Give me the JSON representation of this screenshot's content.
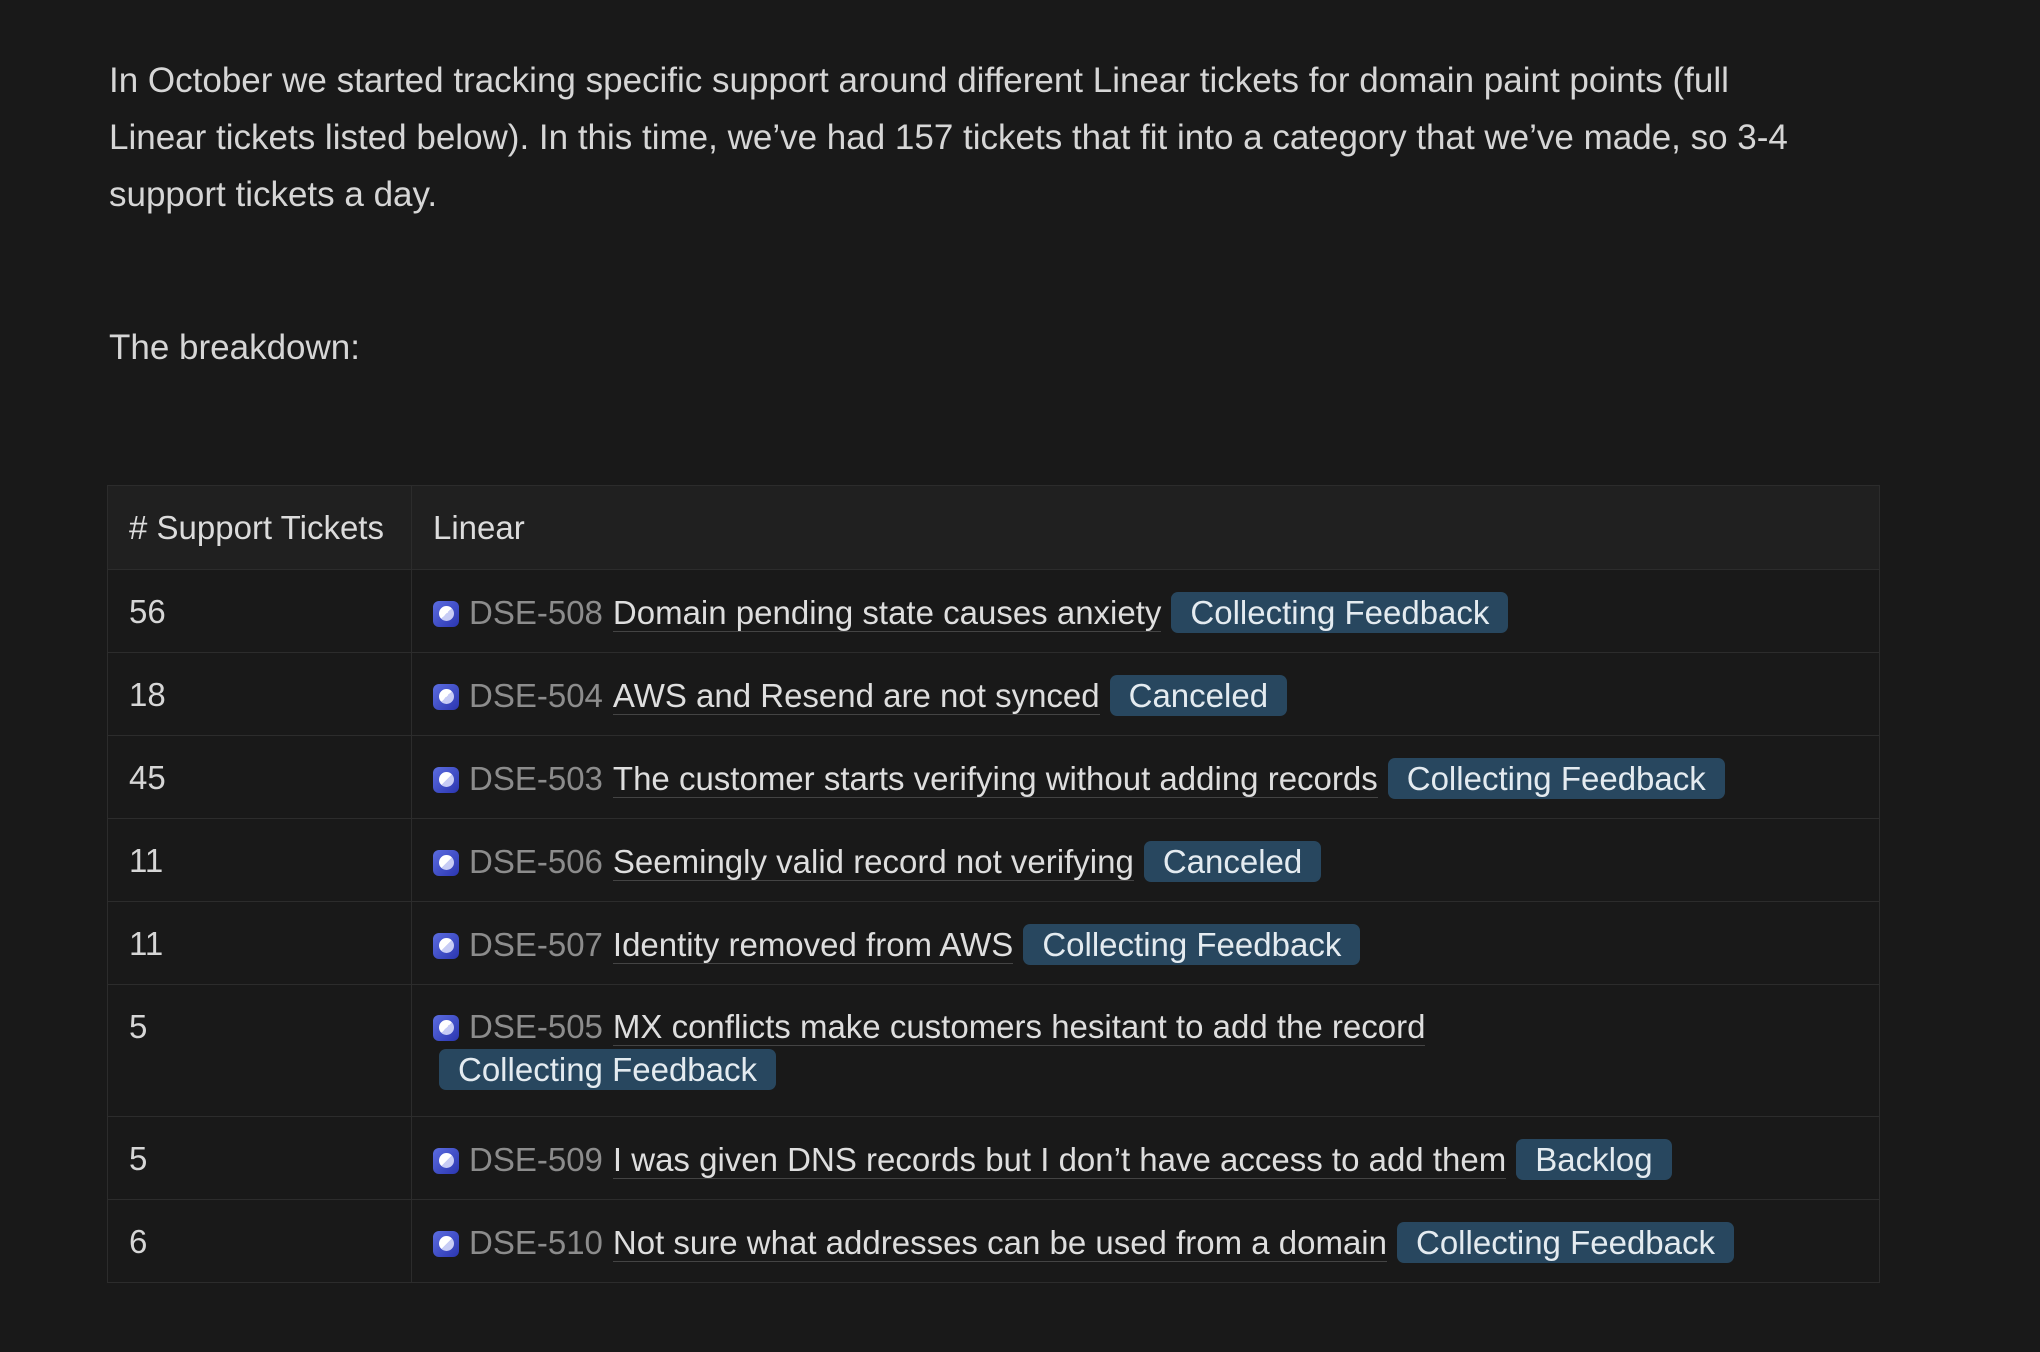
{
  "intro": "In October we started tracking specific support around different Linear tickets for domain paint points (full Linear tickets listed below). In this time, we’ve had 157 tickets that fit into a category that we’ve made, so 3-4 support tickets a day.",
  "breakdown_label": "The breakdown:",
  "table": {
    "headers": [
      "# Support Tickets",
      "Linear"
    ],
    "rows": [
      {
        "count": "56",
        "icon": "linear-issue-icon",
        "id": "DSE-508",
        "title": "Domain pending state causes anxiety",
        "status": "Collecting Feedback"
      },
      {
        "count": "18",
        "icon": "linear-issue-icon",
        "id": "DSE-504",
        "title": "AWS and Resend are not synced",
        "status": "Canceled"
      },
      {
        "count": "45",
        "icon": "linear-issue-icon",
        "id": "DSE-503",
        "title": "The customer starts verifying without adding records",
        "status": "Collecting Feedback"
      },
      {
        "count": "11",
        "icon": "linear-issue-icon",
        "id": "DSE-506",
        "title": "Seemingly valid record not verifying",
        "status": "Canceled"
      },
      {
        "count": "11",
        "icon": "linear-issue-icon",
        "id": "DSE-507",
        "title": "Identity removed from AWS",
        "status": "Collecting Feedback"
      },
      {
        "count": "5",
        "icon": "linear-issue-icon",
        "id": "DSE-505",
        "title": "MX conflicts make customers hesitant to add the record",
        "status": "Collecting Feedback"
      },
      {
        "count": "5",
        "icon": "linear-issue-icon",
        "id": "DSE-509",
        "title": "I was given DNS records but I don’t have access to add them",
        "status": "Backlog"
      },
      {
        "count": "6",
        "icon": "linear-issue-icon",
        "id": "DSE-510",
        "title": "Not sure what addresses can be used from a domain",
        "status": "Collecting Feedback"
      }
    ]
  },
  "colors": {
    "background": "#191919",
    "badge": "#28475f",
    "icon": "#3b46c8"
  }
}
